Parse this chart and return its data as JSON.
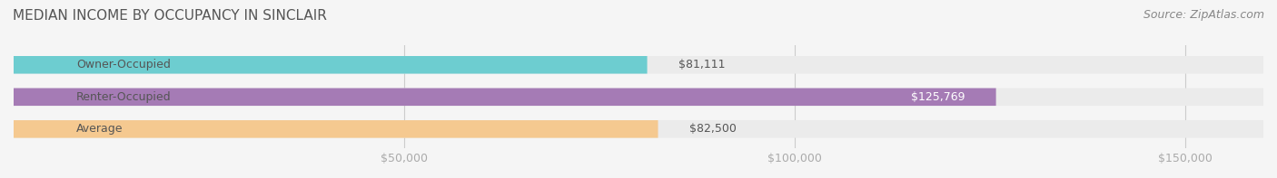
{
  "title": "MEDIAN INCOME BY OCCUPANCY IN SINCLAIR",
  "source": "Source: ZipAtlas.com",
  "categories": [
    "Owner-Occupied",
    "Renter-Occupied",
    "Average"
  ],
  "values": [
    81111,
    125769,
    82500
  ],
  "bar_colors": [
    "#6dcdd0",
    "#a57bb5",
    "#f5c990"
  ],
  "bar_bg_color": "#ebebeb",
  "label_texts": [
    "$81,111",
    "$125,769",
    "$82,500"
  ],
  "xlim": [
    0,
    160000
  ],
  "xticks": [
    50000,
    100000,
    150000
  ],
  "xtick_labels": [
    "$50,000",
    "$100,000",
    "$150,000"
  ],
  "title_fontsize": 11,
  "source_fontsize": 9,
  "bar_label_fontsize": 9,
  "category_fontsize": 9,
  "tick_fontsize": 9,
  "bar_height": 0.55,
  "bg_color": "#f5f5f5",
  "title_color": "#555555",
  "source_color": "#888888",
  "tick_color": "#aaaaaa",
  "grid_color": "#cccccc",
  "category_label_color": "#555555"
}
